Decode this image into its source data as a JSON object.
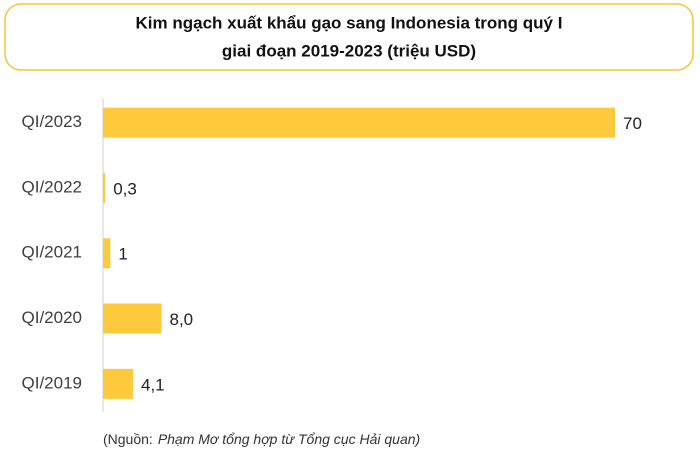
{
  "chart_data": {
    "type": "bar",
    "orientation": "horizontal",
    "title_lines": [
      "Kim ngạch xuất khẩu gạo sang Indonesia trong quý I",
      "giai đoạn 2019-2023 (triệu USD)"
    ],
    "categories": [
      "QI/2023",
      "QI/2022",
      "QI/2021",
      "QI/2020",
      "QI/2019"
    ],
    "values": [
      70,
      0.3,
      1,
      8.0,
      4.1
    ],
    "value_labels": [
      "70",
      "0,3",
      "1",
      "8,0",
      "4,1"
    ],
    "color": "#ffc93c",
    "source_label": "(Nguồn:",
    "source_text": "Phạm Mơ tổng hợp từ Tổng cục Hải quan)"
  }
}
